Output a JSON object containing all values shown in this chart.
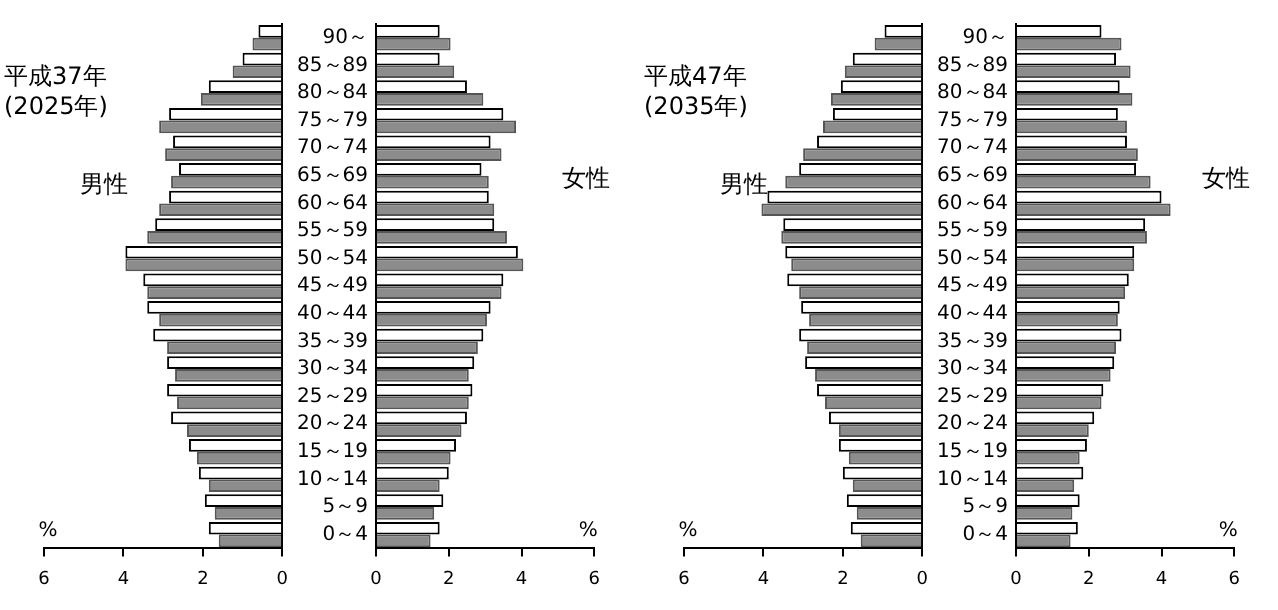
{
  "chart_data": [
    {
      "type": "bar",
      "orientation": "horizontal",
      "title": "平成37年\n(2025年)",
      "annotations": [
        "男性"
      ],
      "xlabel": "%",
      "grid": false,
      "xlim": [
        6,
        0
      ],
      "xticks": [
        6,
        4,
        2,
        0
      ],
      "categories": [
        null,
        null,
        null,
        null,
        null,
        null,
        null,
        null,
        null,
        null,
        null,
        null,
        null,
        null,
        null,
        null,
        null,
        null,
        null
      ],
      "series": [
        {
          "color": "#ffffff",
          "values": [
            0.6,
            1.0,
            1.85,
            2.85,
            2.75,
            2.6,
            2.85,
            3.2,
            3.95,
            3.5,
            3.4,
            3.25,
            2.9,
            2.9,
            2.8,
            2.35,
            2.1,
            1.95,
            1.85
          ]
        },
        {
          "color": "#8c8c8c",
          "values": [
            0.75,
            1.25,
            2.05,
            3.1,
            2.95,
            2.8,
            3.1,
            3.4,
            3.95,
            3.4,
            3.1,
            2.9,
            2.7,
            2.65,
            2.4,
            2.15,
            1.85,
            1.7,
            1.6
          ]
        }
      ]
    },
    {
      "type": "bar",
      "orientation": "horizontal",
      "annotations": [
        "女性"
      ],
      "xlabel": "%",
      "grid": false,
      "xlim": [
        0,
        6
      ],
      "xticks": [
        0,
        2,
        4,
        6
      ],
      "categories": [
        "90～",
        "85～89",
        "80～84",
        "75～79",
        "70～74",
        "65～69",
        "60～64",
        "55～59",
        "50～54",
        "45～49",
        "40～44",
        "35～39",
        "30～34",
        "25～29",
        "20～24",
        "15～19",
        "10～14",
        "5～9",
        "0～4"
      ],
      "series": [
        {
          "color": "#ffffff",
          "values": [
            1.75,
            1.75,
            2.5,
            3.5,
            3.15,
            2.9,
            3.1,
            3.25,
            3.9,
            3.5,
            3.15,
            2.95,
            2.7,
            2.65,
            2.5,
            2.2,
            2.0,
            1.85,
            1.75
          ]
        },
        {
          "color": "#8c8c8c",
          "values": [
            2.05,
            2.15,
            2.95,
            3.85,
            3.45,
            3.1,
            3.25,
            3.6,
            4.05,
            3.45,
            3.05,
            2.8,
            2.55,
            2.55,
            2.35,
            2.05,
            1.75,
            1.6,
            1.5
          ]
        }
      ]
    },
    {
      "type": "bar",
      "orientation": "horizontal",
      "title": "平成47年\n(2035年)",
      "annotations": [
        "男性"
      ],
      "xlabel": "%",
      "grid": false,
      "xlim": [
        6,
        0
      ],
      "xticks": [
        6,
        4,
        2,
        0
      ],
      "categories": [
        null,
        null,
        null,
        null,
        null,
        null,
        null,
        null,
        null,
        null,
        null,
        null,
        null,
        null,
        null,
        null,
        null,
        null,
        null
      ],
      "series": [
        {
          "color": "#ffffff",
          "values": [
            0.95,
            1.75,
            2.05,
            2.25,
            2.65,
            3.1,
            3.9,
            3.5,
            3.45,
            3.4,
            3.05,
            3.1,
            2.95,
            2.65,
            2.35,
            2.1,
            2.0,
            1.9,
            1.8
          ]
        },
        {
          "color": "#8c8c8c",
          "values": [
            1.2,
            1.95,
            2.3,
            2.5,
            3.0,
            3.45,
            4.05,
            3.55,
            3.3,
            3.1,
            2.85,
            2.9,
            2.7,
            2.45,
            2.1,
            1.85,
            1.75,
            1.65,
            1.55
          ]
        }
      ]
    },
    {
      "type": "bar",
      "orientation": "horizontal",
      "annotations": [
        "女性"
      ],
      "xlabel": "%",
      "grid": false,
      "xlim": [
        0,
        6
      ],
      "xticks": [
        0,
        2,
        4,
        6
      ],
      "categories": [
        "90～",
        "85～89",
        "80～84",
        "75～79",
        "70～74",
        "65～69",
        "60～64",
        "55～59",
        "50～54",
        "45～49",
        "40～44",
        "35～39",
        "30～34",
        "25～29",
        "20～24",
        "15～19",
        "10～14",
        "5～9",
        "0～4"
      ],
      "series": [
        {
          "color": "#ffffff",
          "values": [
            2.35,
            2.75,
            2.85,
            2.8,
            3.05,
            3.3,
            4.0,
            3.55,
            3.25,
            3.1,
            2.85,
            2.9,
            2.7,
            2.4,
            2.15,
            1.95,
            1.85,
            1.75,
            1.7
          ]
        },
        {
          "color": "#8c8c8c",
          "values": [
            2.9,
            3.15,
            3.2,
            3.05,
            3.35,
            3.7,
            4.25,
            3.6,
            3.25,
            3.0,
            2.8,
            2.75,
            2.6,
            2.35,
            2.0,
            1.75,
            1.6,
            1.55,
            1.5
          ]
        }
      ]
    }
  ]
}
